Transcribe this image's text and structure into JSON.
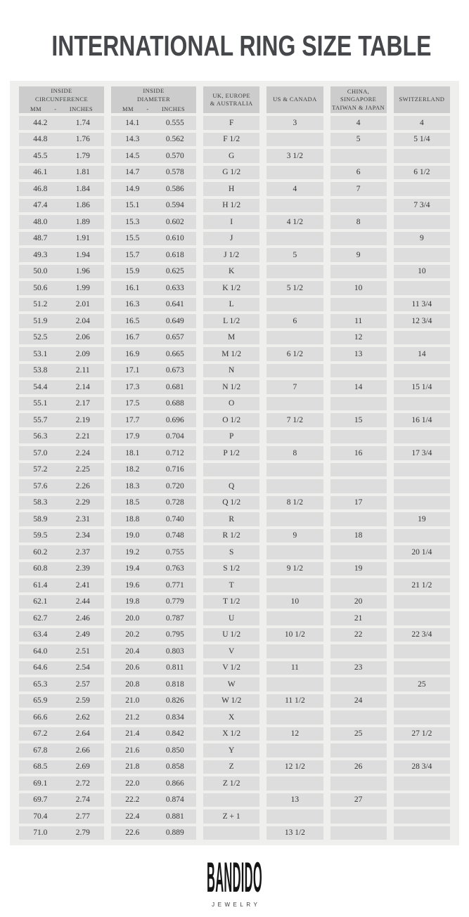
{
  "page": {
    "title": "INTERNATIONAL RING SIZE TABLE"
  },
  "colors": {
    "page_bg": "#ffffff",
    "table_bg": "#efefee",
    "cell_bg": "#dcdddc",
    "header_cell_bg": "#cbcccb",
    "title_text": "#45474a",
    "body_text": "#333335"
  },
  "table": {
    "columns": [
      {
        "id": "circumference",
        "lines": [
          "INSIDE",
          "CIRCUNFERENCE"
        ],
        "sub": [
          "MM",
          "-",
          "INCHES"
        ],
        "double": true
      },
      {
        "id": "diameter",
        "lines": [
          "INSIDE",
          "DIAMETER"
        ],
        "sub": [
          "MM",
          "-",
          "INCHES"
        ],
        "double": true
      },
      {
        "id": "uk_europe_australia",
        "lines": [
          "UK, EUROPE",
          "& AUSTRALIA"
        ],
        "double": false
      },
      {
        "id": "us_canada",
        "lines": [
          "US & CANADA"
        ],
        "double": false
      },
      {
        "id": "china_singapore_taiwan_japan",
        "lines": [
          "CHINA,",
          "SINGAPORE",
          "TAIWAN & JAPAN"
        ],
        "double": false
      },
      {
        "id": "switzerland",
        "lines": [
          "SWITZERLAND"
        ],
        "double": false
      }
    ],
    "rows": [
      [
        "44.2",
        "1.74",
        "14.1",
        "0.555",
        "F",
        "3",
        "4",
        "4"
      ],
      [
        "44.8",
        "1.76",
        "14.3",
        "0.562",
        "F 1/2",
        "",
        "5",
        "5 1/4"
      ],
      [
        "45.5",
        "1.79",
        "14.5",
        "0.570",
        "G",
        "3 1/2",
        "",
        ""
      ],
      [
        "46.1",
        "1.81",
        "14.7",
        "0.578",
        "G 1/2",
        "",
        "6",
        "6 1/2"
      ],
      [
        "46.8",
        "1.84",
        "14.9",
        "0.586",
        "H",
        "4",
        "7",
        ""
      ],
      [
        "47.4",
        "1.86",
        "15.1",
        "0.594",
        "H 1/2",
        "",
        "",
        "7 3/4"
      ],
      [
        "48.0",
        "1.89",
        "15.3",
        "0.602",
        "I",
        "4 1/2",
        "8",
        ""
      ],
      [
        "48.7",
        "1.91",
        "15.5",
        "0.610",
        "J",
        "",
        "",
        "9"
      ],
      [
        "49.3",
        "1.94",
        "15.7",
        "0.618",
        "J 1/2",
        "5",
        "9",
        ""
      ],
      [
        "50.0",
        "1.96",
        "15.9",
        "0.625",
        "K",
        "",
        "",
        "10"
      ],
      [
        "50.6",
        "1.99",
        "16.1",
        "0.633",
        "K 1/2",
        "5 1/2",
        "10",
        ""
      ],
      [
        "51.2",
        "2.01",
        "16.3",
        "0.641",
        "L",
        "",
        "",
        "11 3/4"
      ],
      [
        "51.9",
        "2.04",
        "16.5",
        "0.649",
        "L 1/2",
        "6",
        "11",
        "12 3/4"
      ],
      [
        "52.5",
        "2.06",
        "16.7",
        "0.657",
        "M",
        "",
        "12",
        ""
      ],
      [
        "53.1",
        "2.09",
        "16.9",
        "0.665",
        "M 1/2",
        "6 1/2",
        "13",
        "14"
      ],
      [
        "53.8",
        "2.11",
        "17.1",
        "0.673",
        "N",
        "",
        "",
        ""
      ],
      [
        "54.4",
        "2.14",
        "17.3",
        "0.681",
        "N 1/2",
        "7",
        "14",
        "15 1/4"
      ],
      [
        "55.1",
        "2.17",
        "17.5",
        "0.688",
        "O",
        "",
        "",
        ""
      ],
      [
        "55.7",
        "2.19",
        "17.7",
        "0.696",
        "O 1/2",
        "7 1/2",
        "15",
        "16 1/4"
      ],
      [
        "56.3",
        "2.21",
        "17.9",
        "0.704",
        "P",
        "",
        "",
        ""
      ],
      [
        "57.0",
        "2.24",
        "18.1",
        "0.712",
        "P 1/2",
        "8",
        "16",
        "17 3/4"
      ],
      [
        "57.2",
        "2.25",
        "18.2",
        "0.716",
        "",
        "",
        "",
        ""
      ],
      [
        "57.6",
        "2.26",
        "18.3",
        "0.720",
        "Q",
        "",
        "",
        ""
      ],
      [
        "58.3",
        "2.29",
        "18.5",
        "0.728",
        "Q 1/2",
        "8 1/2",
        "17",
        ""
      ],
      [
        "58.9",
        "2.31",
        "18.8",
        "0.740",
        "R",
        "",
        "",
        "19"
      ],
      [
        "59.5",
        "2.34",
        "19.0",
        "0.748",
        "R 1/2",
        "9",
        "18",
        ""
      ],
      [
        "60.2",
        "2.37",
        "19.2",
        "0.755",
        "S",
        "",
        "",
        "20 1/4"
      ],
      [
        "60.8",
        "2.39",
        "19.4",
        "0.763",
        "S 1/2",
        "9 1/2",
        "19",
        ""
      ],
      [
        "61.4",
        "2.41",
        "19.6",
        "0.771",
        "T",
        "",
        "",
        "21 1/2"
      ],
      [
        "62.1",
        "2.44",
        "19.8",
        "0.779",
        "T 1/2",
        "10",
        "20",
        ""
      ],
      [
        "62.7",
        "2.46",
        "20.0",
        "0.787",
        "U",
        "",
        "21",
        ""
      ],
      [
        "63.4",
        "2.49",
        "20.2",
        "0.795",
        "U 1/2",
        "10 1/2",
        "22",
        "22 3/4"
      ],
      [
        "64.0",
        "2.51",
        "20.4",
        "0.803",
        "V",
        "",
        "",
        ""
      ],
      [
        "64.6",
        "2.54",
        "20.6",
        "0.811",
        "V 1/2",
        "11",
        "23",
        ""
      ],
      [
        "65.3",
        "2.57",
        "20.8",
        "0.818",
        "W",
        "",
        "",
        "25"
      ],
      [
        "65.9",
        "2.59",
        "21.0",
        "0.826",
        "W 1/2",
        "11 1/2",
        "24",
        ""
      ],
      [
        "66.6",
        "2.62",
        "21.2",
        "0.834",
        "X",
        "",
        "",
        ""
      ],
      [
        "67.2",
        "2.64",
        "21.4",
        "0.842",
        "X 1/2",
        "12",
        "25",
        "27 1/2"
      ],
      [
        "67.8",
        "2.66",
        "21.6",
        "0.850",
        "Y",
        "",
        "",
        ""
      ],
      [
        "68.5",
        "2.69",
        "21.8",
        "0.858",
        "Z",
        "12 1/2",
        "26",
        "28 3/4"
      ],
      [
        "69.1",
        "2.72",
        "22.0",
        "0.866",
        "Z 1/2",
        "",
        "",
        ""
      ],
      [
        "69.7",
        "2.74",
        "22.2",
        "0.874",
        "",
        "13",
        "27",
        ""
      ],
      [
        "70.4",
        "2.77",
        "22.4",
        "0.881",
        "Z + 1",
        "",
        "",
        ""
      ],
      [
        "71.0",
        "2.79",
        "22.6",
        "0.889",
        "",
        "13 1/2",
        "",
        ""
      ]
    ]
  },
  "footer": {
    "brand": "BANDIDO",
    "brand_sub": "JEWELRY"
  }
}
